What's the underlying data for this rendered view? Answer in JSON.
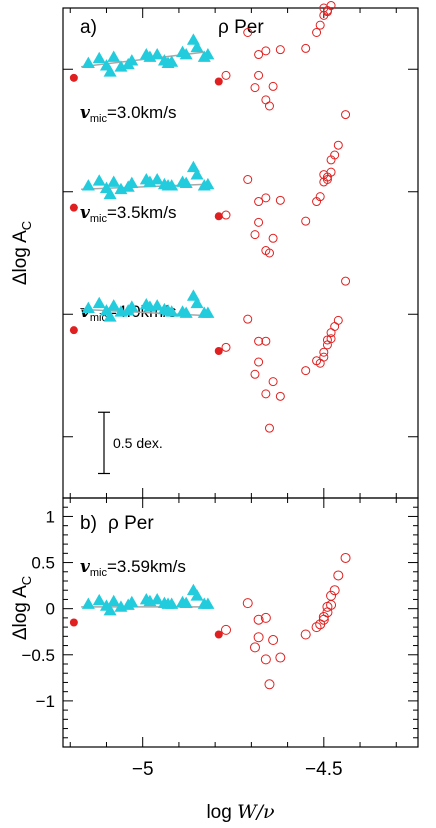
{
  "colors": {
    "triangle": "#22ccdd",
    "filled_dot": "#e02020",
    "open_circle": "#e02020",
    "fit_line": "#a8a8a8",
    "axes": "#000000"
  },
  "shared_x": {
    "label": "log W/ν",
    "label_main": "log ",
    "label_italic": "W/ν",
    "xlim": [
      -5.22,
      -4.24
    ],
    "ticks": [
      -5,
      -4.5
    ],
    "tick_labels": [
      "−5",
      "−4.5"
    ]
  },
  "chart_data": [
    {
      "type": "scatter",
      "panel_tag": "a)",
      "star": "ρ  Per",
      "ylabel": "Δlog A",
      "ylabel_sub": "C",
      "scale_bar_label": "0.5 dex.",
      "scale_bar_value": 0.5,
      "offset_step": 1.0,
      "series": [
        {
          "label_prefix": "v",
          "label_sub": "mic",
          "label_value": "=3.0km/s",
          "offset": 3,
          "fit": {
            "x": [
              -5.17,
              -4.83
            ],
            "y": [
              0.02,
              0.14
            ]
          },
          "triangles": {
            "x": [
              -5.15,
              -5.12,
              -5.1,
              -5.09,
              -5.08,
              -5.06,
              -5.04,
              -5.03,
              -4.99,
              -4.98,
              -4.96,
              -4.94,
              -4.93,
              -4.92,
              -4.89,
              -4.88,
              -4.86,
              -4.85,
              -4.83,
              -4.82
            ],
            "y": [
              0.05,
              0.09,
              0.03,
              -0.02,
              0.1,
              0.02,
              0.04,
              0.07,
              0.12,
              0.1,
              0.12,
              0.07,
              0.05,
              0.06,
              0.14,
              0.12,
              0.24,
              0.18,
              0.1,
              0.12
            ]
          },
          "filled": {
            "x": [
              -5.19,
              -4.79
            ],
            "y": [
              -0.07,
              -0.1
            ]
          },
          "open": {
            "x": [
              -4.77,
              -4.71,
              -4.69,
              -4.68,
              -4.68,
              -4.66,
              -4.66,
              -4.65,
              -4.64,
              -4.62,
              -4.55,
              -4.52,
              -4.51,
              -4.5,
              -4.5,
              -4.49,
              -4.49,
              -4.48,
              -4.48,
              -4.47,
              -4.46,
              -4.44
            ],
            "y": [
              -0.05,
              0.3,
              -0.15,
              0.12,
              -0.05,
              0.15,
              -0.25,
              -0.3,
              -0.14,
              0.16,
              0.17,
              0.3,
              0.36,
              0.44,
              0.5,
              0.47,
              0.48,
              0.52,
              0.62,
              0.66,
              0.8,
              1.02
            ]
          }
        },
        {
          "label_prefix": "v",
          "label_sub": "mic",
          "label_value": "=3.5km/s",
          "offset": 2,
          "fit": {
            "x": [
              -5.17,
              -4.83
            ],
            "y": [
              0.02,
              0.06
            ]
          },
          "triangles": {
            "x": [
              -5.15,
              -5.12,
              -5.1,
              -5.09,
              -5.08,
              -5.06,
              -5.04,
              -5.03,
              -4.99,
              -4.98,
              -4.96,
              -4.94,
              -4.93,
              -4.92,
              -4.89,
              -4.88,
              -4.86,
              -4.85,
              -4.83,
              -4.82
            ],
            "y": [
              0.05,
              0.09,
              0.03,
              -0.02,
              0.08,
              0.02,
              0.04,
              0.07,
              0.1,
              0.08,
              0.1,
              0.06,
              0.05,
              0.05,
              0.08,
              0.07,
              0.2,
              0.14,
              0.05,
              0.06
            ]
          },
          "filled": {
            "x": [
              -5.19,
              -4.79
            ],
            "y": [
              -0.13,
              -0.2
            ]
          },
          "open": {
            "x": [
              -4.77,
              -4.71,
              -4.69,
              -4.68,
              -4.68,
              -4.66,
              -4.66,
              -4.65,
              -4.64,
              -4.62,
              -4.55,
              -4.52,
              -4.51,
              -4.5,
              -4.5,
              -4.49,
              -4.49,
              -4.48,
              -4.48,
              -4.47,
              -4.46,
              -4.44
            ],
            "y": [
              -0.19,
              0.1,
              -0.35,
              -0.08,
              -0.25,
              -0.05,
              -0.48,
              -0.5,
              -0.38,
              -0.07,
              -0.24,
              -0.08,
              -0.04,
              0.08,
              0.14,
              0.1,
              0.12,
              0.16,
              0.26,
              0.3,
              0.38,
              0.63
            ]
          }
        },
        {
          "label_prefix": "v",
          "label_sub": "mic",
          "label_value": "=4.0km/s",
          "offset": 1,
          "fit": {
            "x": [
              -5.17,
              -4.83
            ],
            "y": [
              0.04,
              -0.01
            ]
          },
          "triangles": {
            "x": [
              -5.15,
              -5.12,
              -5.1,
              -5.09,
              -5.08,
              -5.06,
              -5.04,
              -5.03,
              -4.99,
              -4.98,
              -4.96,
              -4.94,
              -4.93,
              -4.92,
              -4.89,
              -4.88,
              -4.86,
              -4.85,
              -4.83,
              -4.82
            ],
            "y": [
              0.05,
              0.09,
              0.03,
              -0.02,
              0.07,
              0.02,
              0.03,
              0.06,
              0.08,
              0.06,
              0.07,
              0.04,
              0.03,
              0.02,
              0.02,
              0.01,
              0.15,
              0.09,
              0.01,
              0.01
            ]
          },
          "filled": {
            "x": [
              -5.19,
              -4.79
            ],
            "y": [
              -0.13,
              -0.3
            ]
          },
          "open": {
            "x": [
              -4.77,
              -4.71,
              -4.69,
              -4.68,
              -4.68,
              -4.66,
              -4.66,
              -4.65,
              -4.64,
              -4.62,
              -4.55,
              -4.52,
              -4.51,
              -4.5,
              -4.5,
              -4.49,
              -4.49,
              -4.48,
              -4.48,
              -4.47,
              -4.46,
              -4.44
            ],
            "y": [
              -0.27,
              -0.04,
              -0.49,
              -0.22,
              -0.39,
              -0.22,
              -0.65,
              -0.93,
              -0.55,
              -0.67,
              -0.46,
              -0.38,
              -0.4,
              -0.35,
              -0.31,
              -0.25,
              -0.21,
              -0.2,
              -0.15,
              -0.1,
              -0.05,
              0.27
            ]
          }
        }
      ],
      "ylim": [
        -0.5,
        3.5
      ],
      "y_ticks": [
        0,
        1,
        2,
        3
      ],
      "y_tick_labels": []
    },
    {
      "type": "scatter",
      "panel_tag": "b)",
      "star": "ρ  Per",
      "ylabel": "Δlog A",
      "ylabel_sub": "C",
      "ylim": [
        -1.5,
        1.2
      ],
      "y_ticks": [
        1,
        0.5,
        0,
        -0.5,
        -1
      ],
      "y_tick_labels": [
        "1",
        "0.5",
        "0",
        "−0.5",
        "−1"
      ],
      "series": [
        {
          "label_prefix": "v",
          "label_sub": "mic",
          "label_value": "=3.59km/s",
          "fit": {
            "x": [
              -5.17,
              -4.83
            ],
            "y": [
              0.02,
              0.02
            ]
          },
          "triangles": {
            "x": [
              -5.15,
              -5.12,
              -5.1,
              -5.09,
              -5.08,
              -5.06,
              -5.04,
              -5.03,
              -4.99,
              -4.98,
              -4.96,
              -4.94,
              -4.93,
              -4.92,
              -4.89,
              -4.88,
              -4.86,
              -4.85,
              -4.83,
              -4.82
            ],
            "y": [
              0.05,
              0.09,
              0.03,
              -0.02,
              0.08,
              0.02,
              0.04,
              0.07,
              0.1,
              0.08,
              0.1,
              0.06,
              0.05,
              0.05,
              0.07,
              0.06,
              0.2,
              0.14,
              0.05,
              0.05
            ]
          },
          "filled": {
            "x": [
              -5.19,
              -4.79
            ],
            "y": [
              -0.15,
              -0.28
            ]
          },
          "open": {
            "x": [
              -4.77,
              -4.71,
              -4.69,
              -4.68,
              -4.68,
              -4.66,
              -4.66,
              -4.65,
              -4.64,
              -4.62,
              -4.55,
              -4.52,
              -4.51,
              -4.5,
              -4.5,
              -4.49,
              -4.49,
              -4.48,
              -4.48,
              -4.47,
              -4.46,
              -4.44
            ],
            "y": [
              -0.23,
              0.06,
              -0.42,
              -0.12,
              -0.31,
              -0.1,
              -0.55,
              -0.82,
              -0.34,
              -0.53,
              -0.28,
              -0.2,
              -0.17,
              -0.12,
              -0.09,
              -0.04,
              0.02,
              0.04,
              0.14,
              0.2,
              0.36,
              0.55
            ]
          }
        }
      ]
    }
  ]
}
